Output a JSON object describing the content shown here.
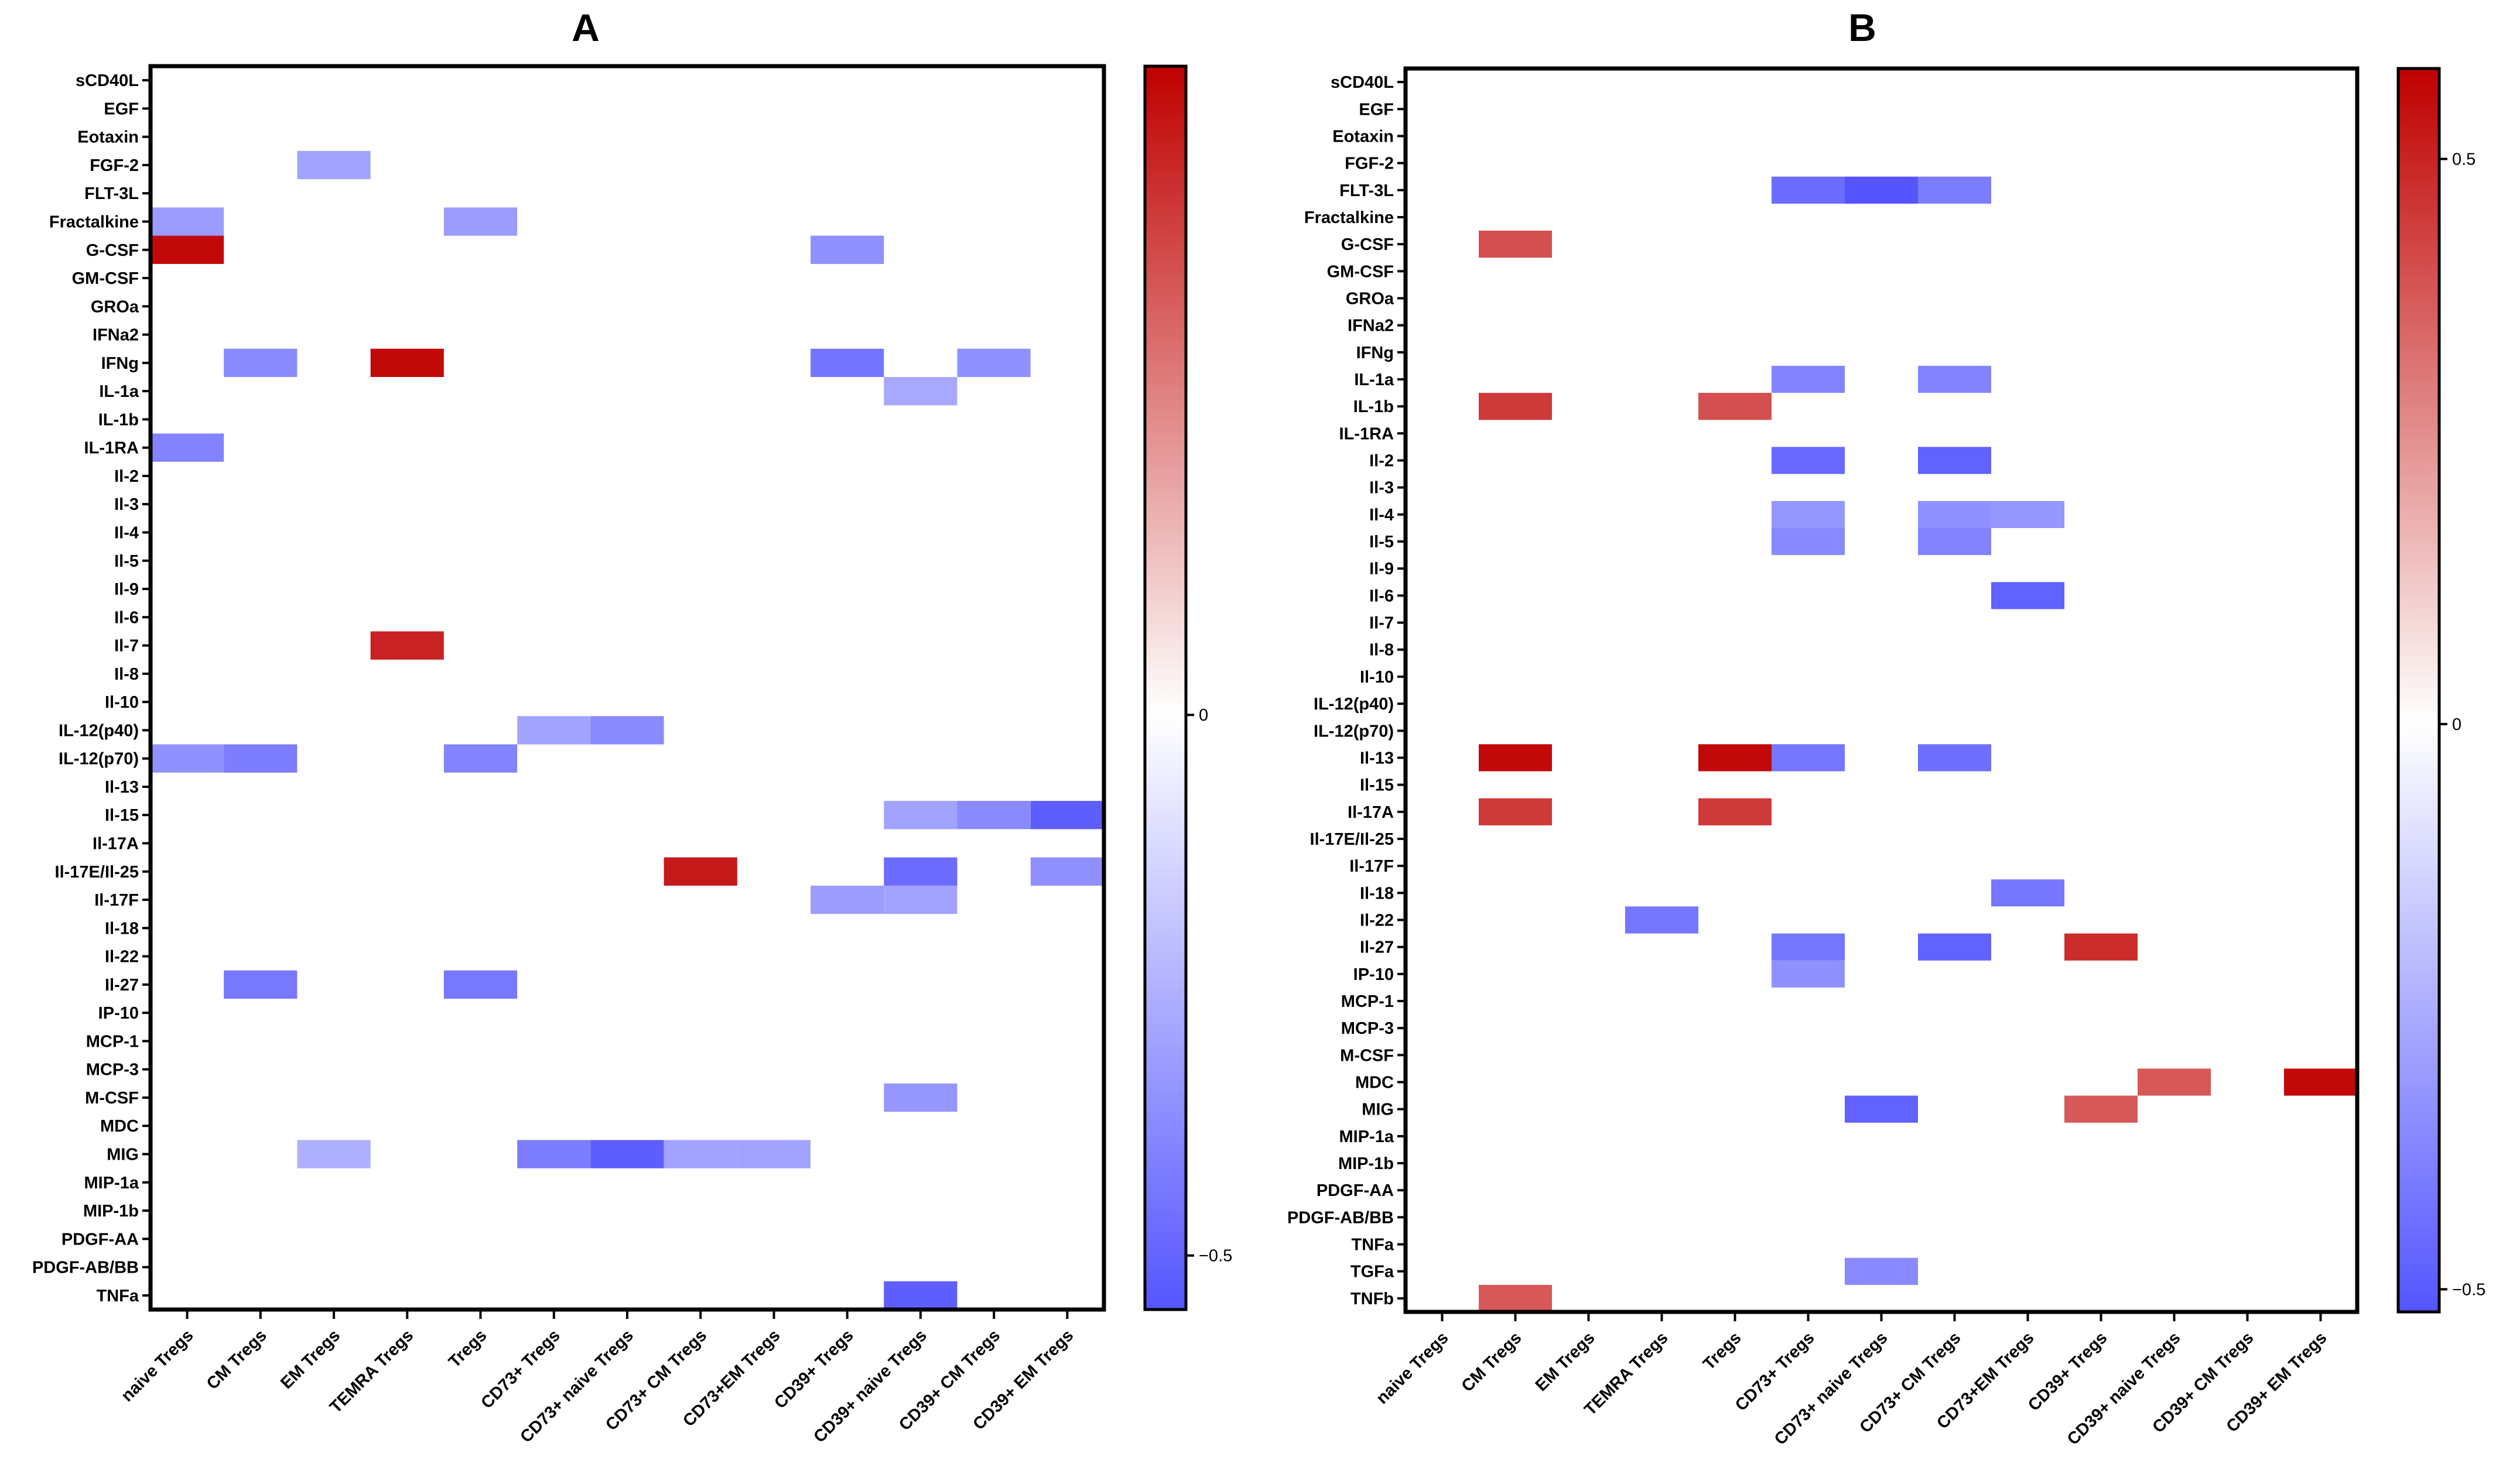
{
  "chart_data": [
    {
      "type": "heatmap",
      "title": "A",
      "rows": [
        "sCD40L",
        "EGF",
        "Eotaxin",
        "FGF-2",
        "FLT-3L",
        "Fractalkine",
        "G-CSF",
        "GM-CSF",
        "GROa",
        "IFNa2",
        "IFNg",
        "IL-1a",
        "IL-1b",
        "IL-1RA",
        "Il-2",
        "Il-3",
        "Il-4",
        "Il-5",
        "Il-9",
        "Il-6",
        "Il-7",
        "Il-8",
        "Il-10",
        "IL-12(p40)",
        "IL-12(p70)",
        "Il-13",
        "Il-15",
        "Il-17A",
        "Il-17E/Il-25",
        "Il-17F",
        "Il-18",
        "Il-22",
        "Il-27",
        "IP-10",
        "MCP-1",
        "MCP-3",
        "M-CSF",
        "MDC",
        "MIG",
        "MIP-1a",
        "MIP-1b",
        "PDGF-AA",
        "PDGF-AB/BB",
        "TNFa"
      ],
      "columns": [
        "naive Tregs",
        "CM Tregs",
        "EM Tregs",
        "TEMRA Tregs",
        "Tregs",
        "CD73+ Tregs",
        "CD73+ naive Tregs",
        "CD73+ CM Tregs",
        "CD73+EM Tregs",
        "CD39+ Tregs",
        "CD39+ naive Tregs",
        "CD39+ CM Tregs",
        "CD39+ EM Tregs"
      ],
      "cells": [
        {
          "row": "FGF-2",
          "col": "EM Tregs",
          "value": -0.3
        },
        {
          "row": "Fractalkine",
          "col": "naive Tregs",
          "value": -0.32
        },
        {
          "row": "Fractalkine",
          "col": "Tregs",
          "value": -0.32
        },
        {
          "row": "G-CSF",
          "col": "naive Tregs",
          "value": 0.58
        },
        {
          "row": "G-CSF",
          "col": "CD39+ Tregs",
          "value": -0.36
        },
        {
          "row": "IFNg",
          "col": "CM Tregs",
          "value": -0.38
        },
        {
          "row": "IFNg",
          "col": "TEMRA Tregs",
          "value": 0.58
        },
        {
          "row": "IFNg",
          "col": "CD39+ Tregs",
          "value": -0.45
        },
        {
          "row": "IFNg",
          "col": "CD39+ CM Tregs",
          "value": -0.36
        },
        {
          "row": "IL-1a",
          "col": "CD39+ naive Tregs",
          "value": -0.28
        },
        {
          "row": "IL-1RA",
          "col": "naive Tregs",
          "value": -0.4
        },
        {
          "row": "Il-7",
          "col": "TEMRA Tregs",
          "value": 0.52
        },
        {
          "row": "IL-12(p40)",
          "col": "CD73+ Tregs",
          "value": -0.3
        },
        {
          "row": "IL-12(p40)",
          "col": "CD73+ naive Tregs",
          "value": -0.38
        },
        {
          "row": "IL-12(p70)",
          "col": "naive Tregs",
          "value": -0.36
        },
        {
          "row": "IL-12(p70)",
          "col": "CM Tregs",
          "value": -0.42
        },
        {
          "row": "IL-12(p70)",
          "col": "Tregs",
          "value": -0.4
        },
        {
          "row": "Il-15",
          "col": "CD39+ naive Tregs",
          "value": -0.3
        },
        {
          "row": "Il-15",
          "col": "CD39+ CM Tregs",
          "value": -0.38
        },
        {
          "row": "Il-15",
          "col": "CD39+ EM Tregs",
          "value": -0.52
        },
        {
          "row": "Il-17E/Il-25",
          "col": "CD73+ CM Tregs",
          "value": 0.54
        },
        {
          "row": "Il-17E/Il-25",
          "col": "CD39+ naive Tregs",
          "value": -0.48
        },
        {
          "row": "Il-17E/Il-25",
          "col": "CD39+ EM Tregs",
          "value": -0.36
        },
        {
          "row": "Il-17F",
          "col": "CD39+ Tregs",
          "value": -0.32
        },
        {
          "row": "Il-17F",
          "col": "CD39+ naive Tregs",
          "value": -0.3
        },
        {
          "row": "Il-27",
          "col": "CM Tregs",
          "value": -0.44
        },
        {
          "row": "Il-27",
          "col": "Tregs",
          "value": -0.44
        },
        {
          "row": "M-CSF",
          "col": "CD39+ naive Tregs",
          "value": -0.34
        },
        {
          "row": "MIG",
          "col": "EM Tregs",
          "value": -0.26
        },
        {
          "row": "MIG",
          "col": "CD73+ Tregs",
          "value": -0.42
        },
        {
          "row": "MIG",
          "col": "CD73+ naive Tregs",
          "value": -0.52
        },
        {
          "row": "MIG",
          "col": "CD73+ CM Tregs",
          "value": -0.3
        },
        {
          "row": "MIG",
          "col": "CD73+EM Tregs",
          "value": -0.3
        },
        {
          "row": "TNFa",
          "col": "CD39+ naive Tregs",
          "value": -0.52
        }
      ],
      "colorbar": {
        "min": -0.55,
        "max": 0.6,
        "ticks": [
          0,
          -0.5
        ],
        "tick_labels": [
          "0",
          "−0.5"
        ]
      }
    },
    {
      "type": "heatmap",
      "title": "B",
      "rows": [
        "sCD40L",
        "EGF",
        "Eotaxin",
        "FGF-2",
        "FLT-3L",
        "Fractalkine",
        "G-CSF",
        "GM-CSF",
        "GROa",
        "IFNa2",
        "IFNg",
        "IL-1a",
        "IL-1b",
        "IL-1RA",
        "Il-2",
        "Il-3",
        "Il-4",
        "Il-5",
        "Il-9",
        "Il-6",
        "Il-7",
        "Il-8",
        "Il-10",
        "IL-12(p40)",
        "IL-12(p70)",
        "Il-13",
        "Il-15",
        "Il-17A",
        "Il-17E/Il-25",
        "Il-17F",
        "Il-18",
        "Il-22",
        "Il-27",
        "IP-10",
        "MCP-1",
        "MCP-3",
        "M-CSF",
        "MDC",
        "MIG",
        "MIP-1a",
        "MIP-1b",
        "PDGF-AA",
        "PDGF-AB/BB",
        "TNFa",
        "TGFa",
        "TNFb"
      ],
      "columns": [
        "naive Tregs",
        "CM Tregs",
        "EM Tregs",
        "TEMRA Tregs",
        "Tregs",
        "CD73+ Tregs",
        "CD73+ naive Tregs",
        "CD73+ CM Tregs",
        "CD73+EM Tregs",
        "CD39+ Tregs",
        "CD39+ naive Tregs",
        "CD39+ CM Tregs",
        "CD39+ EM Tregs"
      ],
      "cells": [
        {
          "row": "FLT-3L",
          "col": "CD73+ Tregs",
          "value": -0.45
        },
        {
          "row": "FLT-3L",
          "col": "CD73+ naive Tregs",
          "value": -0.52
        },
        {
          "row": "FLT-3L",
          "col": "CD73+ CM Tregs",
          "value": -0.4
        },
        {
          "row": "G-CSF",
          "col": "CM Tregs",
          "value": 0.4
        },
        {
          "row": "IL-1a",
          "col": "CD73+ Tregs",
          "value": -0.38
        },
        {
          "row": "IL-1a",
          "col": "CD73+ CM Tregs",
          "value": -0.38
        },
        {
          "row": "IL-1b",
          "col": "CM Tregs",
          "value": 0.45
        },
        {
          "row": "IL-1b",
          "col": "Tregs",
          "value": 0.4
        },
        {
          "row": "Il-2",
          "col": "CD73+ Tregs",
          "value": -0.46
        },
        {
          "row": "Il-2",
          "col": "CD73+ CM Tregs",
          "value": -0.48
        },
        {
          "row": "Il-4",
          "col": "CD73+ Tregs",
          "value": -0.32
        },
        {
          "row": "Il-4",
          "col": "CD73+ CM Tregs",
          "value": -0.34
        },
        {
          "row": "Il-4",
          "col": "CD73+EM Tregs",
          "value": -0.32
        },
        {
          "row": "Il-5",
          "col": "CD73+ Tregs",
          "value": -0.36
        },
        {
          "row": "Il-5",
          "col": "CD73+ CM Tregs",
          "value": -0.38
        },
        {
          "row": "Il-6",
          "col": "CD73+EM Tregs",
          "value": -0.48
        },
        {
          "row": "Il-13",
          "col": "CM Tregs",
          "value": 0.56
        },
        {
          "row": "Il-13",
          "col": "Tregs",
          "value": 0.56
        },
        {
          "row": "Il-13",
          "col": "CD73+ Tregs",
          "value": -0.42
        },
        {
          "row": "Il-13",
          "col": "CD73+ CM Tregs",
          "value": -0.44
        },
        {
          "row": "Il-17A",
          "col": "CM Tregs",
          "value": 0.45
        },
        {
          "row": "Il-17A",
          "col": "Tregs",
          "value": 0.45
        },
        {
          "row": "Il-18",
          "col": "CD73+EM Tregs",
          "value": -0.42
        },
        {
          "row": "Il-22",
          "col": "TEMRA Tregs",
          "value": -0.42
        },
        {
          "row": "Il-27",
          "col": "CD73+ Tregs",
          "value": -0.42
        },
        {
          "row": "Il-27",
          "col": "CD73+ CM Tregs",
          "value": -0.48
        },
        {
          "row": "Il-27",
          "col": "CD39+ Tregs",
          "value": 0.48
        },
        {
          "row": "IP-10",
          "col": "CD73+ Tregs",
          "value": -0.34
        },
        {
          "row": "MDC",
          "col": "CD39+ naive Tregs",
          "value": 0.38
        },
        {
          "row": "MDC",
          "col": "CD39+ EM Tregs",
          "value": 0.56
        },
        {
          "row": "MIG",
          "col": "CD73+ naive Tregs",
          "value": -0.48
        },
        {
          "row": "MIG",
          "col": "CD39+ Tregs",
          "value": 0.38
        },
        {
          "row": "TGFa",
          "col": "CD73+ naive Tregs",
          "value": -0.36
        },
        {
          "row": "TNFb",
          "col": "CM Tregs",
          "value": 0.38
        }
      ],
      "colorbar": {
        "min": -0.52,
        "max": 0.58,
        "ticks": [
          0.5,
          0,
          -0.5
        ],
        "tick_labels": [
          "0.5",
          "0",
          "−0.5"
        ]
      }
    }
  ],
  "colors": {
    "negative": "#5555ff",
    "neutral": "#ffffff",
    "positive": "#c00000"
  }
}
